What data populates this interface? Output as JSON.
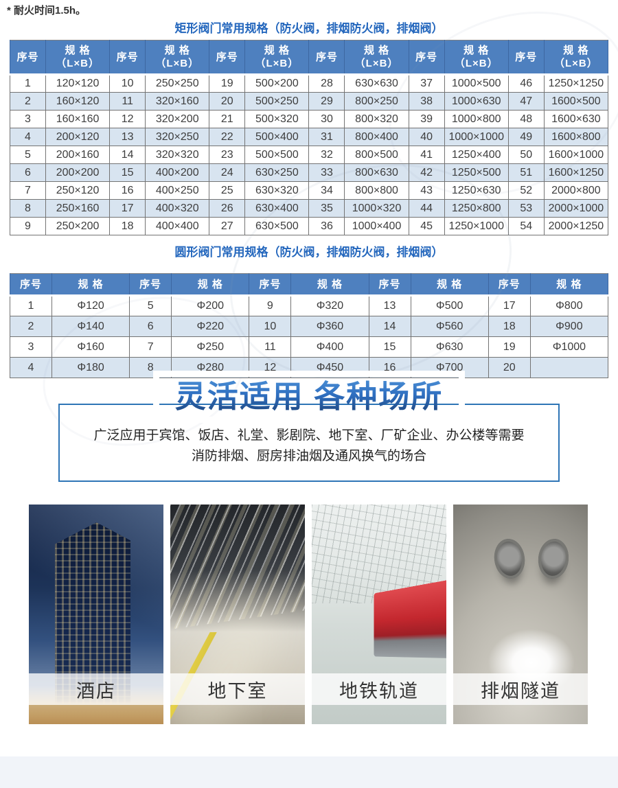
{
  "note": "* 耐火时间1.5h。",
  "rect_table": {
    "title": "矩形阀门常用规格（防火阀，排烟防火阀，排烟阀）",
    "header": {
      "no": "序号",
      "spec": "规 格",
      "spec_sub": "（L×B）"
    },
    "rows": [
      [
        "1",
        "120×120",
        "10",
        "250×250",
        "19",
        "500×200",
        "28",
        "630×630",
        "37",
        "1000×500",
        "46",
        "1250×1250"
      ],
      [
        "2",
        "160×120",
        "11",
        "320×160",
        "20",
        "500×250",
        "29",
        "800×250",
        "38",
        "1000×630",
        "47",
        "1600×500"
      ],
      [
        "3",
        "160×160",
        "12",
        "320×200",
        "21",
        "500×320",
        "30",
        "800×320",
        "39",
        "1000×800",
        "48",
        "1600×630"
      ],
      [
        "4",
        "200×120",
        "13",
        "320×250",
        "22",
        "500×400",
        "31",
        "800×400",
        "40",
        "1000×1000",
        "49",
        "1600×800"
      ],
      [
        "5",
        "200×160",
        "14",
        "320×320",
        "23",
        "500×500",
        "32",
        "800×500",
        "41",
        "1250×400",
        "50",
        "1600×1000"
      ],
      [
        "6",
        "200×200",
        "15",
        "400×200",
        "24",
        "630×250",
        "33",
        "800×630",
        "42",
        "1250×500",
        "51",
        "1600×1250"
      ],
      [
        "7",
        "250×120",
        "16",
        "400×250",
        "25",
        "630×320",
        "34",
        "800×800",
        "43",
        "1250×630",
        "52",
        "2000×800"
      ],
      [
        "8",
        "250×160",
        "17",
        "400×320",
        "26",
        "630×400",
        "35",
        "1000×320",
        "44",
        "1250×800",
        "53",
        "2000×1000"
      ],
      [
        "9",
        "250×200",
        "18",
        "400×400",
        "27",
        "630×500",
        "36",
        "1000×400",
        "45",
        "1250×1000",
        "54",
        "2000×1250"
      ]
    ]
  },
  "round_table": {
    "title": "圆形阀门常用规格（防火阀，排烟防火阀，排烟阀）",
    "header": {
      "no": "序号",
      "spec": "规 格",
      "spec_sub": ""
    },
    "rows": [
      [
        "1",
        "Φ120",
        "5",
        "Φ200",
        "9",
        "Φ320",
        "13",
        "Φ500",
        "17",
        "Φ800"
      ],
      [
        "2",
        "Φ140",
        "6",
        "Φ220",
        "10",
        "Φ360",
        "14",
        "Φ560",
        "18",
        "Φ900"
      ],
      [
        "3",
        "Φ160",
        "7",
        "Φ250",
        "11",
        "Φ400",
        "15",
        "Φ630",
        "19",
        "Φ1000"
      ],
      [
        "4",
        "Φ180",
        "8",
        "Φ280",
        "12",
        "Φ450",
        "16",
        "Φ700",
        "20",
        ""
      ]
    ]
  },
  "section": {
    "heading": "灵活适用 各种场所",
    "desc_line1": "广泛应用于宾馆、饭店、礼堂、影剧院、地下室、厂矿企业、办公楼等需要",
    "desc_line2": "消防排烟、厨房排油烟及通风换气的场合"
  },
  "gallery": {
    "items": [
      {
        "caption": "酒店"
      },
      {
        "caption": "地下室"
      },
      {
        "caption": "地铁轨道"
      },
      {
        "caption": "排烟隧道"
      }
    ]
  },
  "colors": {
    "header_blue": "#4e80bf",
    "row_alt_blue": "#d8e4f0",
    "title_blue": "#2467bd",
    "box_border_blue": "#2e75b6",
    "heading_gradient_top": "#4f93d8",
    "heading_gradient_bottom": "#1b3f72"
  }
}
